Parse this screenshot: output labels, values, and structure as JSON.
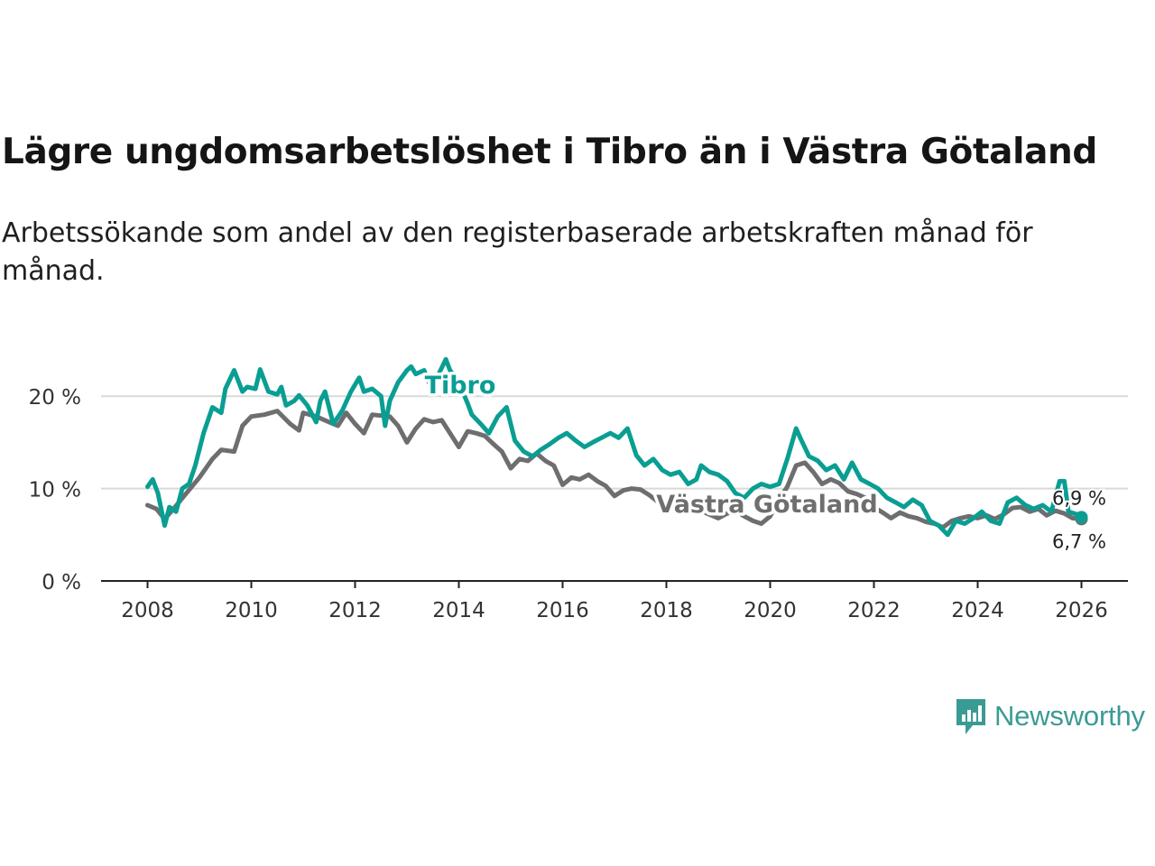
{
  "header": {
    "title": "Lägre ungdomsarbetslöshet i Tibro än i Västra Götaland",
    "subtitle": "Arbetssökande som andel av den registerbaserade arbetskraften månad för månad."
  },
  "brand": {
    "name": "Newsworthy",
    "icon": "newsworthy-logo-icon",
    "color": "#3a9b94"
  },
  "chart_data": {
    "type": "line",
    "title": "Lägre ungdomsarbetslöshet i Tibro än i Västra Götaland",
    "subtitle": "Arbetssökande som andel av den registerbaserade arbetskraften månad för månad.",
    "xlabel": "",
    "ylabel": "",
    "xlim": [
      2007.6,
      2026.9
    ],
    "ylim": [
      0,
      25
    ],
    "x_ticks": [
      2008,
      2010,
      2012,
      2014,
      2016,
      2018,
      2020,
      2022,
      2024,
      2026
    ],
    "x_tick_labels": [
      "2008",
      "2010",
      "2012",
      "2014",
      "2016",
      "2018",
      "2020",
      "2022",
      "2024",
      "2026"
    ],
    "y_ticks": [
      0,
      10,
      20
    ],
    "y_tick_labels": [
      "0 %",
      "10 %",
      "20 %"
    ],
    "grid": true,
    "series": [
      {
        "name": "Västra Götaland",
        "color": "#6e6e70",
        "label_text": "Västra Götaland",
        "end_label": "6,7 %",
        "points": [
          [
            2008.0,
            8.2
          ],
          [
            2008.17,
            7.8
          ],
          [
            2008.33,
            6.7
          ],
          [
            2008.5,
            7.8
          ],
          [
            2008.75,
            9.5
          ],
          [
            2009.0,
            11.2
          ],
          [
            2009.25,
            13.2
          ],
          [
            2009.42,
            14.2
          ],
          [
            2009.67,
            14.0
          ],
          [
            2009.83,
            16.8
          ],
          [
            2010.0,
            17.8
          ],
          [
            2010.25,
            18.0
          ],
          [
            2010.5,
            18.4
          ],
          [
            2010.75,
            17.0
          ],
          [
            2010.92,
            16.3
          ],
          [
            2011.0,
            18.2
          ],
          [
            2011.25,
            17.8
          ],
          [
            2011.5,
            17.2
          ],
          [
            2011.67,
            16.8
          ],
          [
            2011.83,
            18.2
          ],
          [
            2012.0,
            17.0
          ],
          [
            2012.17,
            16.0
          ],
          [
            2012.33,
            18.0
          ],
          [
            2012.5,
            17.9
          ],
          [
            2012.67,
            17.8
          ],
          [
            2012.83,
            16.8
          ],
          [
            2013.0,
            15.0
          ],
          [
            2013.17,
            16.5
          ],
          [
            2013.33,
            17.5
          ],
          [
            2013.5,
            17.2
          ],
          [
            2013.67,
            17.4
          ],
          [
            2013.83,
            16.0
          ],
          [
            2014.0,
            14.5
          ],
          [
            2014.17,
            16.2
          ],
          [
            2014.33,
            16.0
          ],
          [
            2014.5,
            15.7
          ],
          [
            2014.67,
            14.8
          ],
          [
            2014.83,
            14.0
          ],
          [
            2015.0,
            12.2
          ],
          [
            2015.17,
            13.2
          ],
          [
            2015.33,
            13.0
          ],
          [
            2015.5,
            13.8
          ],
          [
            2015.67,
            13.0
          ],
          [
            2015.83,
            12.5
          ],
          [
            2016.0,
            10.4
          ],
          [
            2016.17,
            11.2
          ],
          [
            2016.33,
            11.0
          ],
          [
            2016.5,
            11.5
          ],
          [
            2016.67,
            10.8
          ],
          [
            2016.83,
            10.3
          ],
          [
            2017.0,
            9.2
          ],
          [
            2017.17,
            9.8
          ],
          [
            2017.33,
            10.0
          ],
          [
            2017.5,
            9.9
          ],
          [
            2017.67,
            9.3
          ],
          [
            2017.83,
            8.6
          ],
          [
            2018.0,
            7.7
          ],
          [
            2018.17,
            8.2
          ],
          [
            2018.33,
            8.0
          ],
          [
            2018.5,
            8.4
          ],
          [
            2018.67,
            7.6
          ],
          [
            2018.83,
            7.2
          ],
          [
            2019.0,
            6.8
          ],
          [
            2019.17,
            7.3
          ],
          [
            2019.33,
            7.6
          ],
          [
            2019.5,
            7.0
          ],
          [
            2019.67,
            6.5
          ],
          [
            2019.83,
            6.2
          ],
          [
            2020.0,
            7.0
          ],
          [
            2020.17,
            8.8
          ],
          [
            2020.33,
            10.2
          ],
          [
            2020.5,
            12.5
          ],
          [
            2020.67,
            12.8
          ],
          [
            2020.83,
            11.8
          ],
          [
            2021.0,
            10.5
          ],
          [
            2021.17,
            11.0
          ],
          [
            2021.33,
            10.6
          ],
          [
            2021.5,
            9.7
          ],
          [
            2021.67,
            9.4
          ],
          [
            2021.83,
            9.0
          ],
          [
            2022.0,
            8.0
          ],
          [
            2022.17,
            7.4
          ],
          [
            2022.33,
            6.8
          ],
          [
            2022.5,
            7.4
          ],
          [
            2022.67,
            7.0
          ],
          [
            2022.83,
            6.8
          ],
          [
            2023.0,
            6.4
          ],
          [
            2023.17,
            6.2
          ],
          [
            2023.33,
            5.8
          ],
          [
            2023.5,
            6.5
          ],
          [
            2023.67,
            6.8
          ],
          [
            2023.83,
            7.0
          ],
          [
            2024.0,
            6.8
          ],
          [
            2024.17,
            7.1
          ],
          [
            2024.33,
            6.7
          ],
          [
            2024.5,
            7.2
          ],
          [
            2024.67,
            7.9
          ],
          [
            2024.83,
            8.0
          ],
          [
            2025.0,
            7.5
          ],
          [
            2025.17,
            7.8
          ],
          [
            2025.33,
            7.1
          ],
          [
            2025.5,
            7.6
          ],
          [
            2025.67,
            7.3
          ],
          [
            2025.83,
            6.8
          ],
          [
            2026.0,
            6.7
          ]
        ]
      },
      {
        "name": "Tibro",
        "color": "#0a9e93",
        "label_text": "Tibro",
        "end_label": "6,9 %",
        "points": [
          [
            2008.0,
            10.2
          ],
          [
            2008.1,
            11.0
          ],
          [
            2008.2,
            9.5
          ],
          [
            2008.33,
            6.0
          ],
          [
            2008.42,
            8.0
          ],
          [
            2008.55,
            7.5
          ],
          [
            2008.67,
            10.0
          ],
          [
            2008.8,
            10.5
          ],
          [
            2008.92,
            12.5
          ],
          [
            2009.08,
            16.0
          ],
          [
            2009.25,
            18.8
          ],
          [
            2009.42,
            18.2
          ],
          [
            2009.5,
            20.8
          ],
          [
            2009.67,
            22.8
          ],
          [
            2009.83,
            20.5
          ],
          [
            2009.92,
            21.0
          ],
          [
            2010.08,
            20.8
          ],
          [
            2010.17,
            22.9
          ],
          [
            2010.33,
            20.5
          ],
          [
            2010.5,
            20.2
          ],
          [
            2010.58,
            21.0
          ],
          [
            2010.67,
            19.0
          ],
          [
            2010.83,
            19.5
          ],
          [
            2010.92,
            20.1
          ],
          [
            2011.08,
            19.0
          ],
          [
            2011.25,
            17.2
          ],
          [
            2011.33,
            19.5
          ],
          [
            2011.42,
            20.5
          ],
          [
            2011.58,
            17.0
          ],
          [
            2011.75,
            18.4
          ],
          [
            2011.92,
            20.5
          ],
          [
            2012.08,
            22.0
          ],
          [
            2012.17,
            20.5
          ],
          [
            2012.33,
            20.8
          ],
          [
            2012.5,
            20.0
          ],
          [
            2012.58,
            16.8
          ],
          [
            2012.67,
            19.5
          ],
          [
            2012.83,
            21.5
          ],
          [
            2013.0,
            22.8
          ],
          [
            2013.08,
            23.2
          ],
          [
            2013.17,
            22.4
          ],
          [
            2013.33,
            22.8
          ],
          [
            2013.42,
            21.5
          ],
          [
            2013.58,
            22.0
          ],
          [
            2013.75,
            24.0
          ],
          [
            2013.83,
            22.8
          ],
          [
            2014.0,
            21.5
          ],
          [
            2014.17,
            19.2
          ],
          [
            2014.25,
            18.0
          ],
          [
            2014.42,
            17.0
          ],
          [
            2014.58,
            16.0
          ],
          [
            2014.75,
            17.8
          ],
          [
            2014.92,
            18.8
          ],
          [
            2015.08,
            15.2
          ],
          [
            2015.25,
            14.0
          ],
          [
            2015.42,
            13.5
          ],
          [
            2015.58,
            14.2
          ],
          [
            2015.75,
            14.8
          ],
          [
            2015.92,
            15.5
          ],
          [
            2016.08,
            16.0
          ],
          [
            2016.25,
            15.2
          ],
          [
            2016.42,
            14.5
          ],
          [
            2016.58,
            15.0
          ],
          [
            2016.75,
            15.5
          ],
          [
            2016.92,
            16.0
          ],
          [
            2017.08,
            15.5
          ],
          [
            2017.25,
            16.5
          ],
          [
            2017.42,
            13.6
          ],
          [
            2017.58,
            12.5
          ],
          [
            2017.75,
            13.2
          ],
          [
            2017.92,
            12.0
          ],
          [
            2018.08,
            11.5
          ],
          [
            2018.25,
            11.8
          ],
          [
            2018.42,
            10.5
          ],
          [
            2018.58,
            11.0
          ],
          [
            2018.67,
            12.5
          ],
          [
            2018.83,
            11.8
          ],
          [
            2019.0,
            11.5
          ],
          [
            2019.17,
            10.8
          ],
          [
            2019.33,
            9.5
          ],
          [
            2019.5,
            9.0
          ],
          [
            2019.67,
            10.0
          ],
          [
            2019.83,
            10.5
          ],
          [
            2020.0,
            10.2
          ],
          [
            2020.17,
            10.5
          ],
          [
            2020.33,
            13.2
          ],
          [
            2020.5,
            16.5
          ],
          [
            2020.58,
            15.5
          ],
          [
            2020.75,
            13.5
          ],
          [
            2020.92,
            13.0
          ],
          [
            2021.08,
            12.0
          ],
          [
            2021.25,
            12.5
          ],
          [
            2021.42,
            11.0
          ],
          [
            2021.58,
            12.8
          ],
          [
            2021.75,
            11.0
          ],
          [
            2021.92,
            10.5
          ],
          [
            2022.08,
            10.0
          ],
          [
            2022.25,
            9.0
          ],
          [
            2022.42,
            8.5
          ],
          [
            2022.58,
            8.0
          ],
          [
            2022.75,
            8.8
          ],
          [
            2022.92,
            8.2
          ],
          [
            2023.08,
            6.5
          ],
          [
            2023.25,
            6.0
          ],
          [
            2023.42,
            5.0
          ],
          [
            2023.58,
            6.5
          ],
          [
            2023.75,
            6.2
          ],
          [
            2023.92,
            6.8
          ],
          [
            2024.08,
            7.5
          ],
          [
            2024.25,
            6.5
          ],
          [
            2024.42,
            6.2
          ],
          [
            2024.58,
            8.5
          ],
          [
            2024.75,
            9.0
          ],
          [
            2024.92,
            8.2
          ],
          [
            2025.08,
            7.8
          ],
          [
            2025.25,
            8.2
          ],
          [
            2025.42,
            7.5
          ],
          [
            2025.58,
            10.8
          ],
          [
            2025.67,
            10.8
          ],
          [
            2025.75,
            7.5
          ],
          [
            2025.92,
            7.2
          ],
          [
            2026.0,
            6.9
          ]
        ]
      }
    ]
  }
}
